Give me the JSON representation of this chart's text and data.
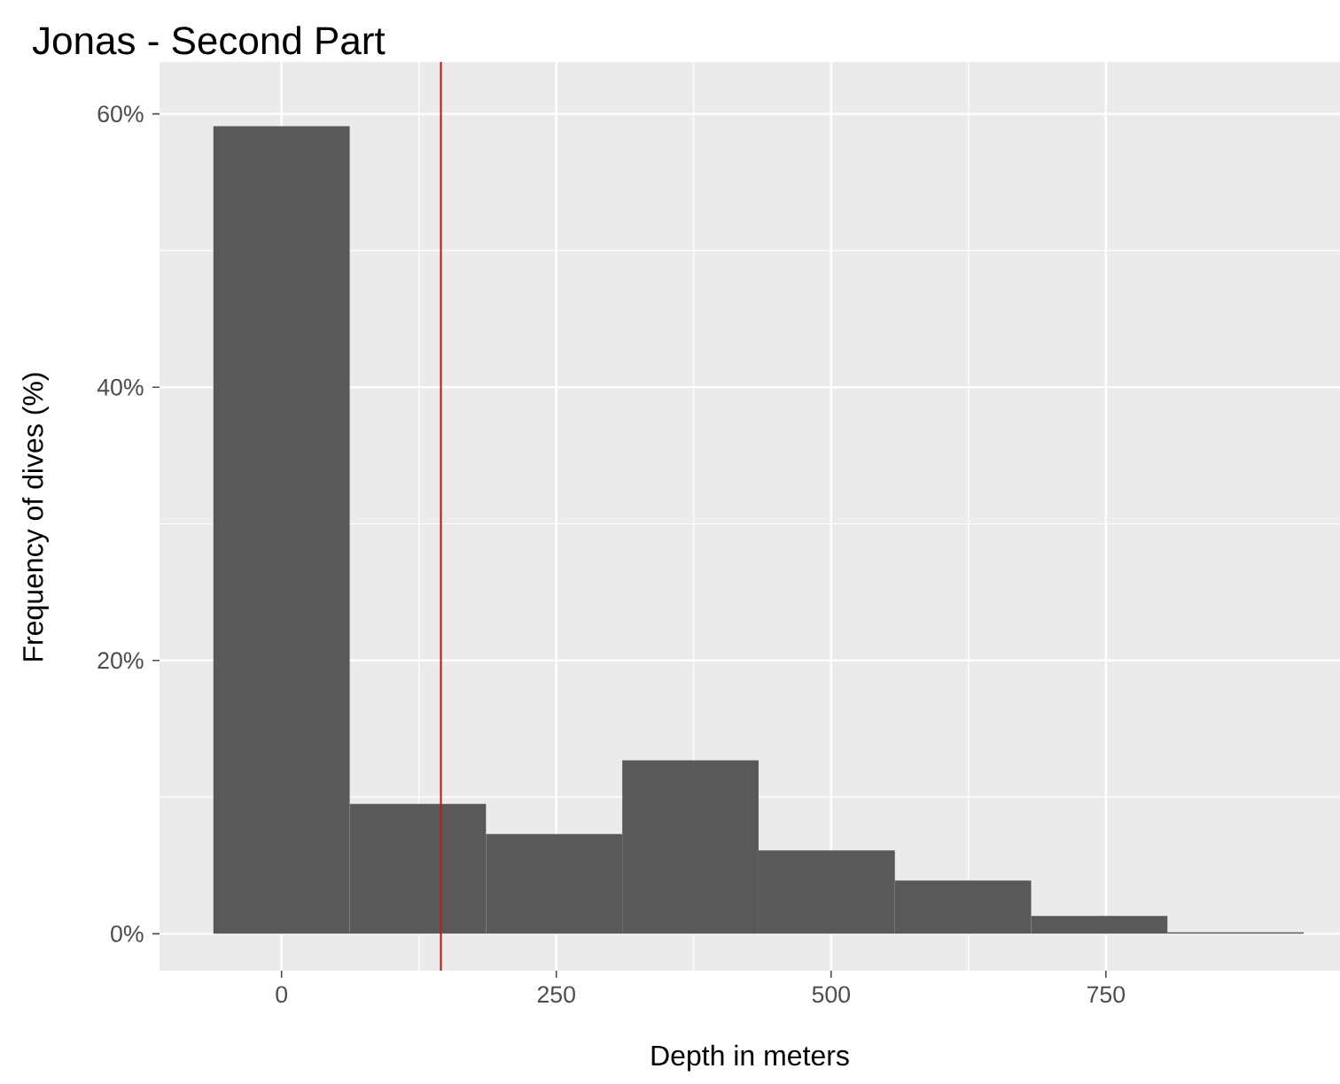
{
  "chart_data": {
    "type": "histogram",
    "title": "Jonas - Second Part",
    "xlabel": "Depth in meters",
    "ylabel": "Frequency of dives (%)",
    "bins": [
      -62,
      62,
      186,
      310,
      434,
      558,
      682,
      806,
      930
    ],
    "values": [
      59.1,
      9.5,
      7.3,
      12.7,
      6.1,
      3.9,
      1.3,
      0.1
    ],
    "color": "#595959",
    "xlim": [
      -111,
      963
    ],
    "ylim": [
      -2.7,
      63.8
    ],
    "xticks": [
      0,
      250,
      500,
      750
    ],
    "yticks": [
      {
        "value": 0,
        "label": "0%"
      },
      {
        "value": 20,
        "label": "20%"
      },
      {
        "value": 40,
        "label": "40%"
      },
      {
        "value": 60,
        "label": "60%"
      }
    ],
    "ref_lines": [
      {
        "axis": "x",
        "value": 145,
        "color": "#b22222"
      }
    ],
    "grid": true
  }
}
